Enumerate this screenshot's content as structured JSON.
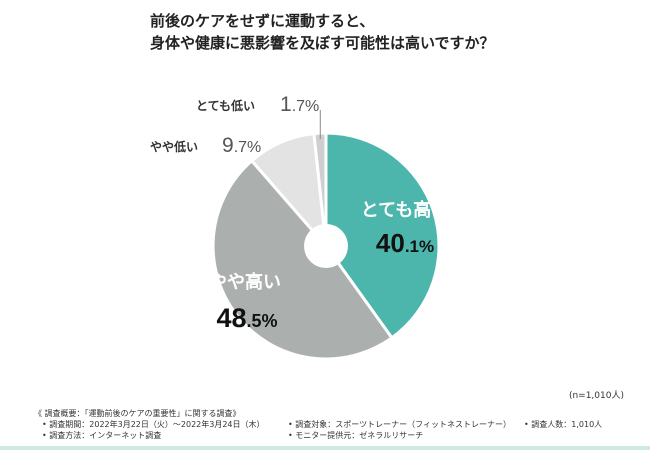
{
  "title": {
    "line1": "前後のケアをせずに運動すると、",
    "line2": "身体や健康に悪影響を及ぼす可能性は高いですか？"
  },
  "sample_size": "(n=1,010人)",
  "colors": {
    "very_high": "#4db6ac",
    "high": "#abafae",
    "low": "#e3e3e3",
    "very_low": "#cfcfcf"
  },
  "chart_data": {
    "type": "pie",
    "donut": true,
    "unit": "%",
    "slices": [
      {
        "label": "とても高い",
        "value": 40.1,
        "int": "40",
        "dec": ".1%"
      },
      {
        "label": "やや高い",
        "value": 48.5,
        "int": "48",
        "dec": ".5%"
      },
      {
        "label": "やや低い",
        "value": 9.7,
        "int": "9",
        "dec": ".7%"
      },
      {
        "label": "とても低い",
        "value": 1.7,
        "int": "1",
        "dec": ".7%"
      }
    ]
  },
  "footer": {
    "overview": "《 調査概要：「運動前後のケアの重要性」に関する調査》",
    "period": "• 調査期間：2022年3月22日（火）〜2022年3月24日（木）",
    "target": "• 調査対象：スポーツトレーナー（フィットネストレーナー）",
    "count": "• 調査人数：1,010人",
    "method": "• 調査方法：インターネット調査",
    "provider": "• モニター提供元：ゼネラルリサーチ"
  }
}
